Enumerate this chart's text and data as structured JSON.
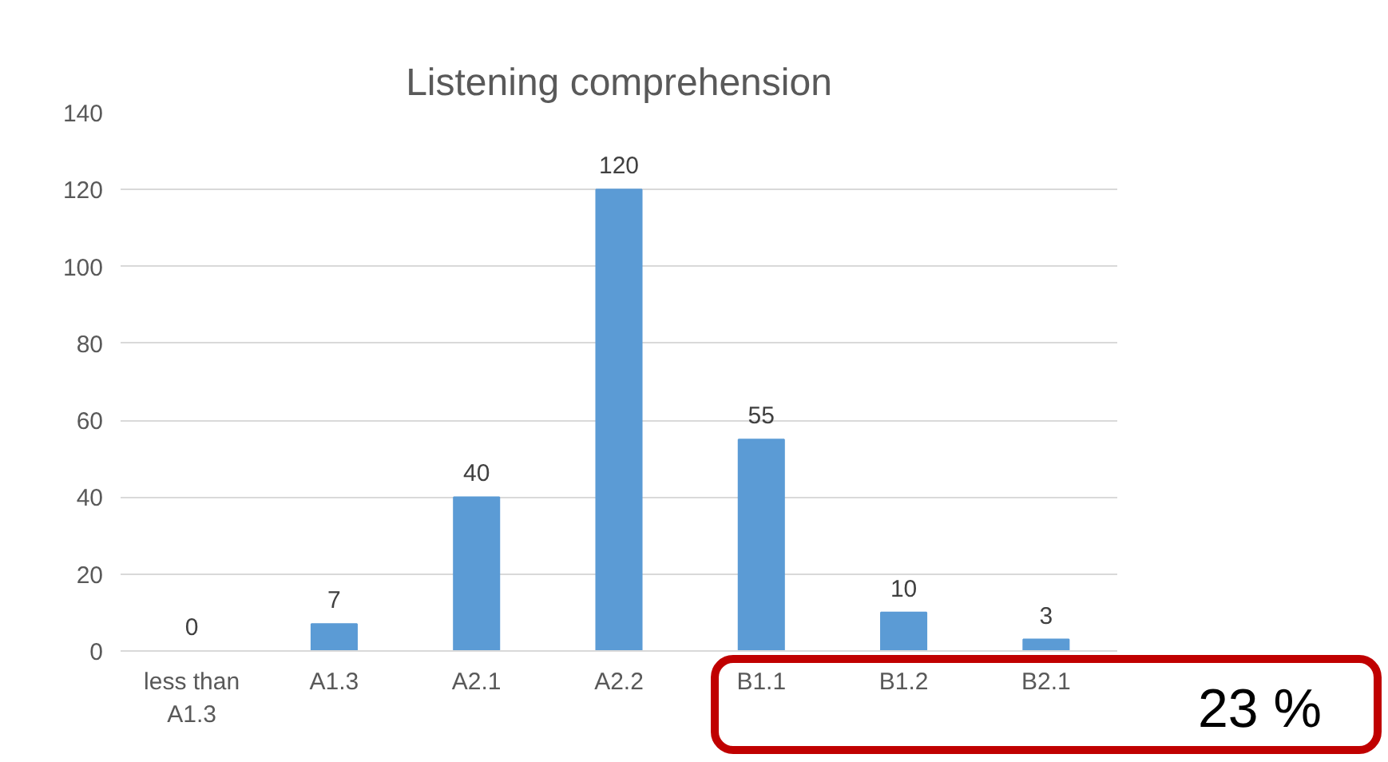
{
  "chart_data": {
    "type": "bar",
    "title": "Listening comprehension",
    "categories": [
      "less than A1.3",
      "A1.3",
      "A2.1",
      "A2.2",
      "B1.1",
      "B1.2",
      "B2.1"
    ],
    "values": [
      0,
      7,
      40,
      120,
      55,
      10,
      3
    ],
    "color": "#5b9bd5",
    "data_labels": true,
    "ylim": [
      0,
      140
    ],
    "yticks": [
      0,
      20,
      40,
      60,
      80,
      100,
      120,
      140
    ],
    "grid": "y",
    "annotations": [
      "23 %"
    ]
  }
}
